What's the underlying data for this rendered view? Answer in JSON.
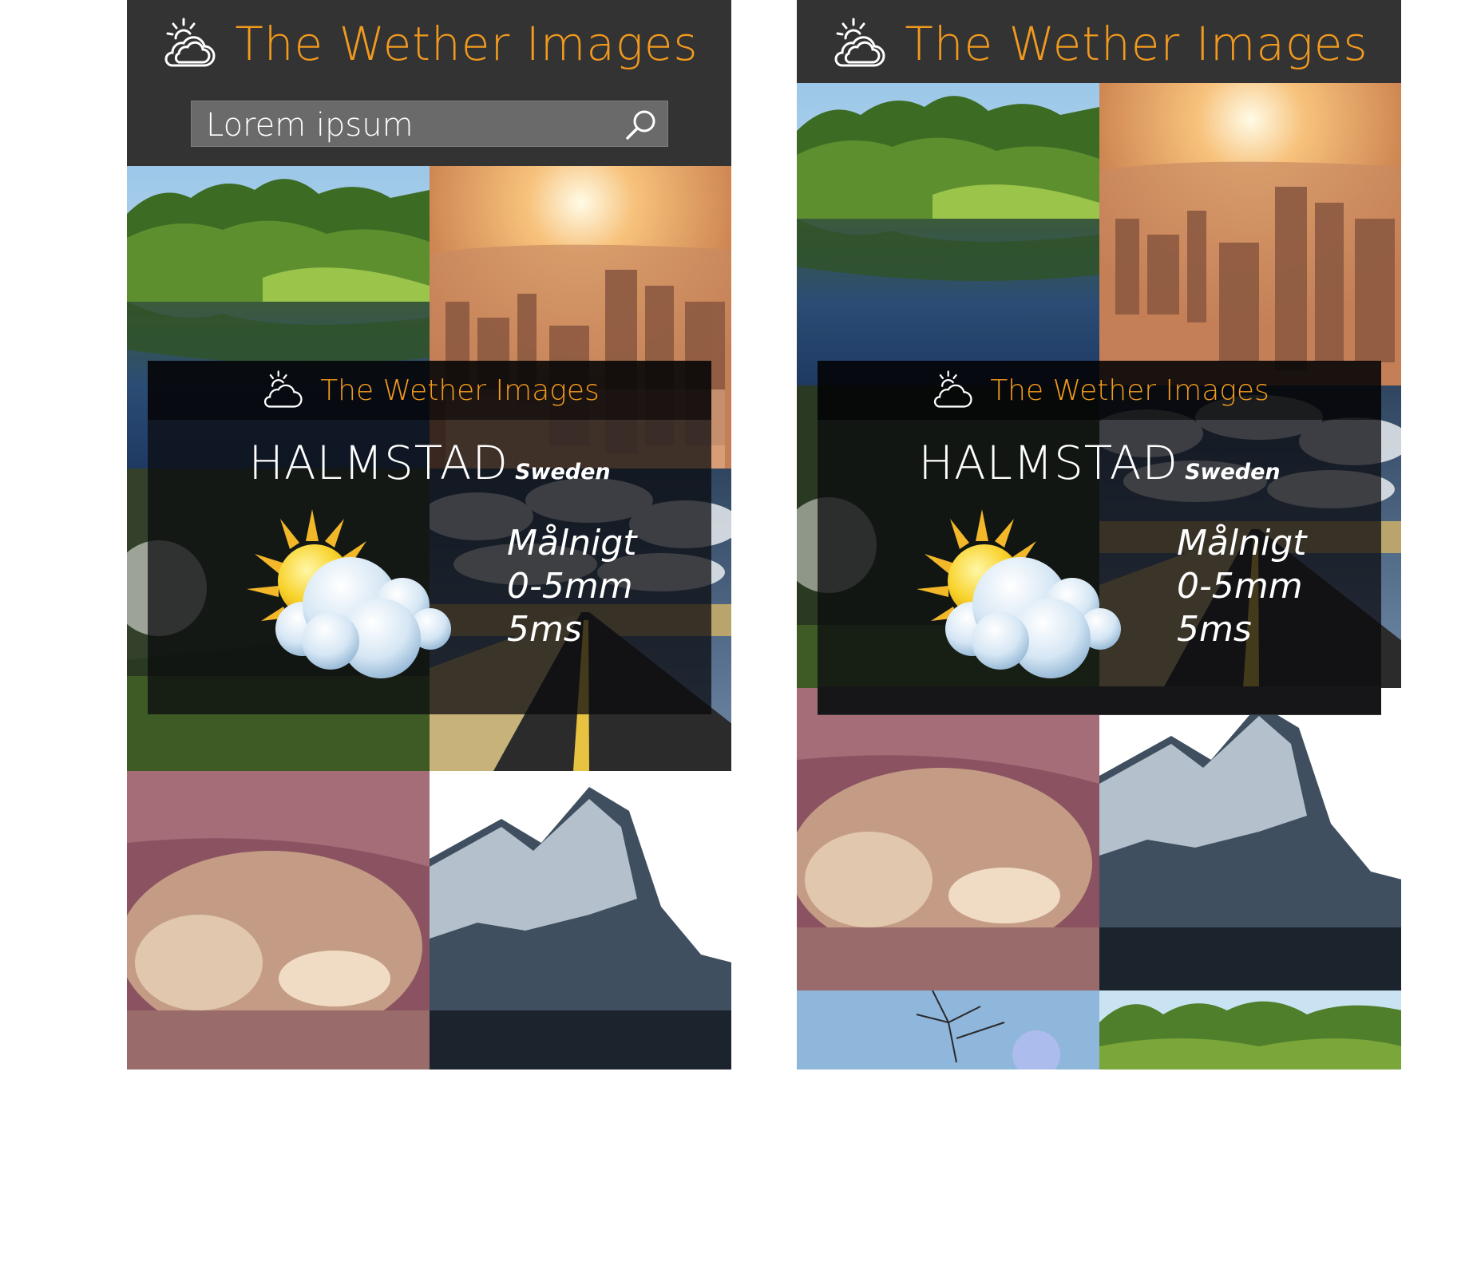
{
  "app": {
    "title": "The Wether Images",
    "accent_color": "#f29a1e",
    "header_bg": "#333333"
  },
  "search": {
    "text": "Lorem ipsum",
    "icon": "search-icon"
  },
  "weather_card": {
    "brand": "The Wether Images",
    "city": "HALMSTAD",
    "country": "Sweden",
    "condition_icon": "partly-cloudy-icon",
    "lines": [
      "Målnigt",
      "0-5mm",
      "5ms"
    ]
  },
  "gallery": {
    "images": [
      "lake-forest-photo",
      "city-sunset-photo",
      "road-clouds-photo",
      "sleeping-dog-photo",
      "snowy-mountain-photo",
      "bare-tree-sky-photo",
      "forest-treeline-photo"
    ]
  }
}
